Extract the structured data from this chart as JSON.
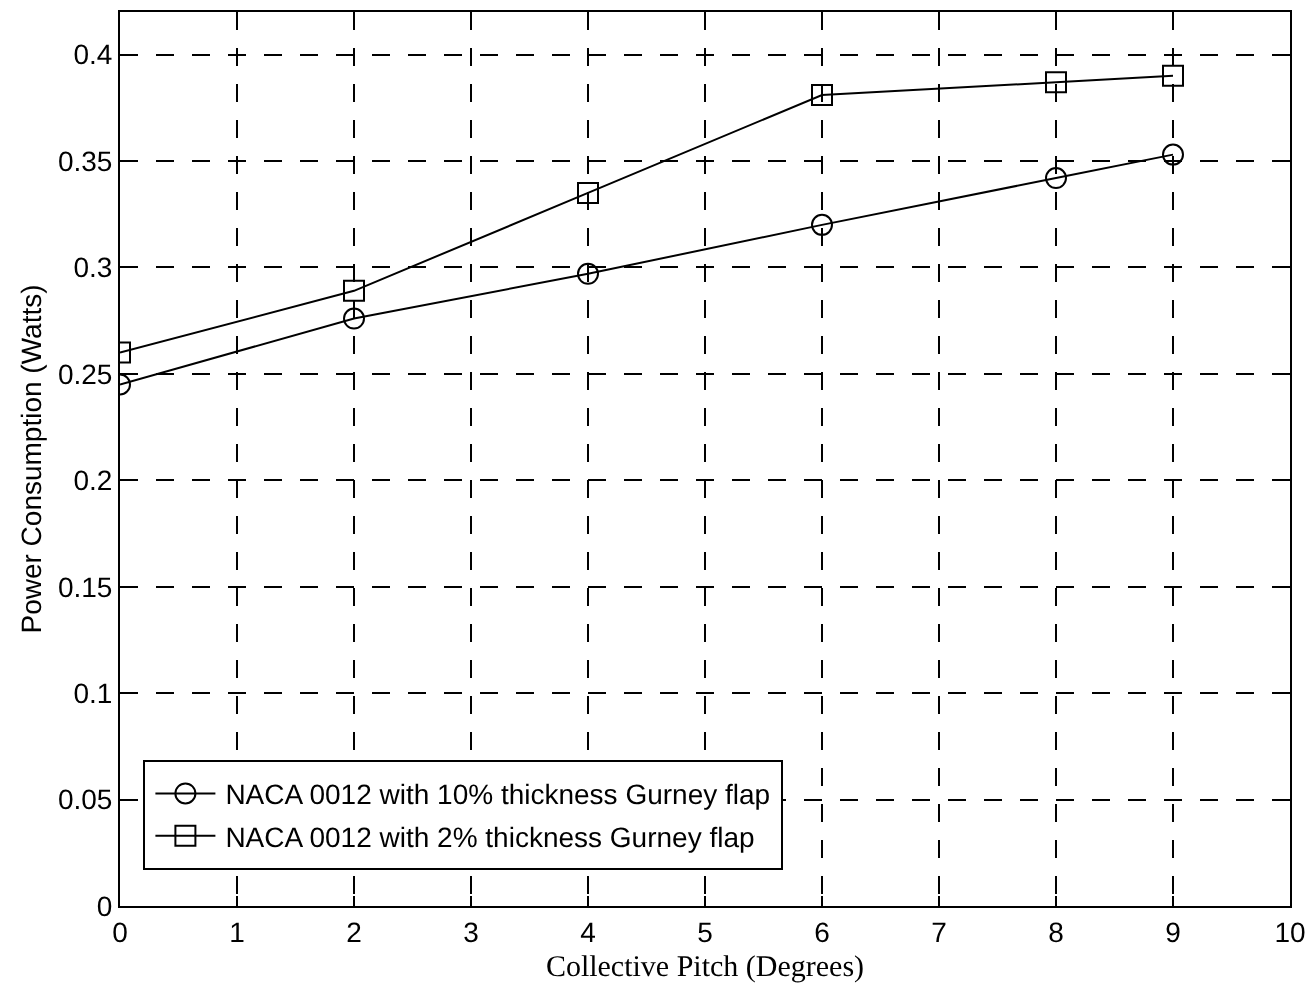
{
  "chart_data": {
    "type": "line",
    "xlabel": "Collective Pitch (Degrees)",
    "ylabel": "Power Consumption (Watts)",
    "x": [
      0,
      2,
      4,
      6,
      8,
      9
    ],
    "series": [
      {
        "name": "NACA 0012 with 10% thickness Gurney flap",
        "color": "#000000",
        "marker": "circle",
        "values": [
          0.245,
          0.276,
          0.297,
          0.32,
          0.342,
          0.353
        ]
      },
      {
        "name": "NACA 0012 with 2% thickness Gurney flap",
        "color": "#000000",
        "marker": "square",
        "values": [
          0.26,
          0.289,
          0.335,
          0.381,
          0.387,
          0.39
        ]
      }
    ],
    "xlim": [
      0,
      10
    ],
    "xticks": [
      0,
      1,
      2,
      3,
      4,
      5,
      6,
      7,
      8,
      9,
      10
    ],
    "ylim": [
      0,
      0.42
    ],
    "yticks": [
      0,
      0.05,
      0.1,
      0.15,
      0.2,
      0.25,
      0.3,
      0.35,
      0.4
    ],
    "grid": true,
    "legend": "bottom left",
    "line_style": "solid"
  }
}
